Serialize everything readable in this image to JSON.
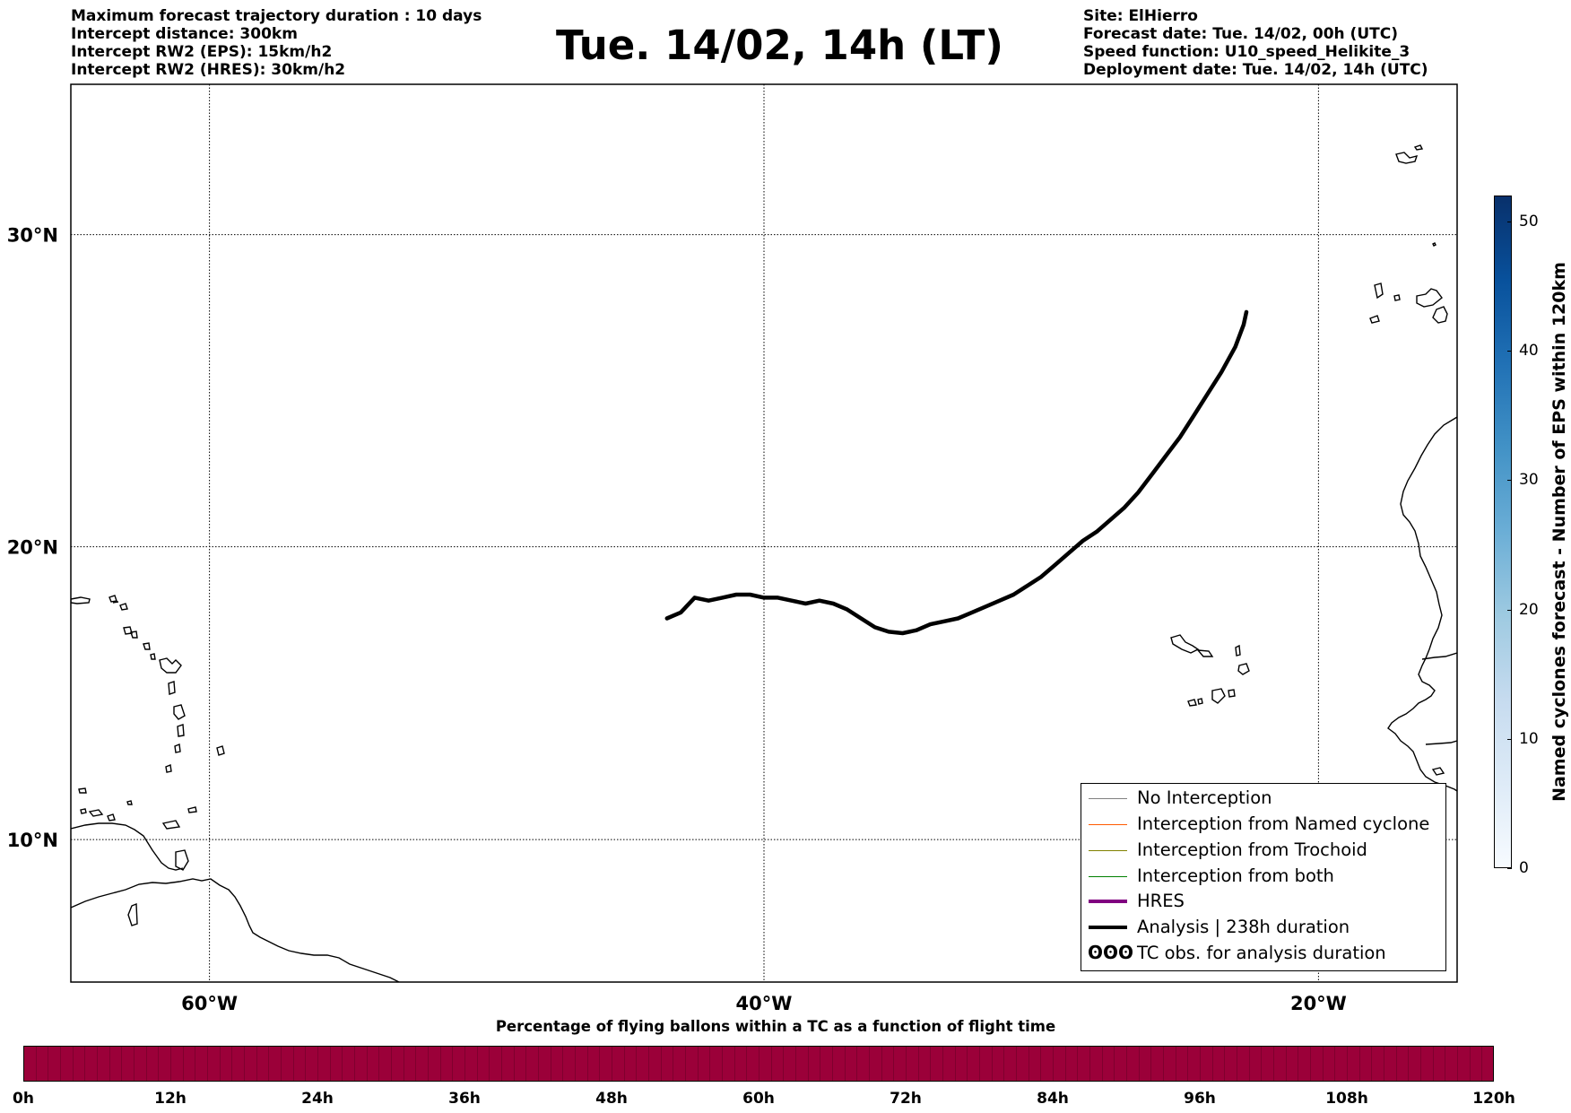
{
  "header": {
    "left_lines": [
      "Maximum forecast trajectory duration : 10 days",
      "Intercept distance: 300km",
      "Intercept RW2 (EPS):  15km/h2",
      "Intercept RW2 (HRES): 30km/h2"
    ],
    "title": "Tue. 14/02, 14h (LT)",
    "right_lines": [
      "Site: ElHierro",
      "Forecast date: Tue. 14/02, 00h (UTC)",
      "Speed function: U10_speed_Helikite_3",
      "Deployment date: Tue. 14/02, 14h (UTC)"
    ]
  },
  "map": {
    "lon_range": [
      -65,
      -15
    ],
    "lat_range": [
      5,
      34.5
    ],
    "lat_labels": [
      "30°N",
      "20°N",
      "10°N"
    ],
    "lon_labels": [
      "60°W",
      "40°W",
      "20°W"
    ],
    "gridlines": true,
    "analysis_track_color": "#000000",
    "analysis_track": [
      [
        -43.5,
        17.6
      ],
      [
        -43.0,
        17.8
      ],
      [
        -42.5,
        18.3
      ],
      [
        -42.0,
        18.2
      ],
      [
        -41.5,
        18.3
      ],
      [
        -41.0,
        18.4
      ],
      [
        -40.5,
        18.4
      ],
      [
        -40.0,
        18.3
      ],
      [
        -39.5,
        18.3
      ],
      [
        -39.0,
        18.2
      ],
      [
        -38.5,
        18.1
      ],
      [
        -38.0,
        18.2
      ],
      [
        -37.5,
        18.1
      ],
      [
        -37.0,
        17.9
      ],
      [
        -36.5,
        17.6
      ],
      [
        -36.0,
        17.3
      ],
      [
        -35.5,
        17.15
      ],
      [
        -35.0,
        17.1
      ],
      [
        -34.5,
        17.2
      ],
      [
        -34.0,
        17.4
      ],
      [
        -33.5,
        17.5
      ],
      [
        -33.0,
        17.6
      ],
      [
        -32.5,
        17.8
      ],
      [
        -32.0,
        18.0
      ],
      [
        -31.5,
        18.2
      ],
      [
        -31.0,
        18.4
      ],
      [
        -30.5,
        18.7
      ],
      [
        -30.0,
        19.0
      ],
      [
        -29.5,
        19.4
      ],
      [
        -29.0,
        19.8
      ],
      [
        -28.5,
        20.2
      ],
      [
        -28.0,
        20.5
      ],
      [
        -27.5,
        20.9
      ],
      [
        -27.0,
        21.3
      ],
      [
        -26.5,
        21.8
      ],
      [
        -26.0,
        22.4
      ],
      [
        -25.5,
        23.0
      ],
      [
        -25.0,
        23.6
      ],
      [
        -24.5,
        24.3
      ],
      [
        -24.0,
        25.0
      ],
      [
        -23.5,
        25.7
      ],
      [
        -23.0,
        26.5
      ],
      [
        -22.7,
        27.2
      ],
      [
        -22.6,
        27.6
      ]
    ]
  },
  "legend": {
    "placement": "lower-right",
    "items": [
      {
        "label": "No Interception",
        "color": "#808080"
      },
      {
        "label": "Interception from Named cyclone",
        "color": "#ff5a00"
      },
      {
        "label": "Interception from Trochoid",
        "color": "#808000"
      },
      {
        "label": "Interception from both",
        "color": "#008000"
      },
      {
        "label": "HRES",
        "color": "#800080"
      },
      {
        "label": "Analysis | 238h duration",
        "color": "#000000"
      },
      {
        "label": "TC obs. for analysis duration",
        "color": "#000000",
        "symbol": "ʘʘʘ"
      }
    ]
  },
  "time_colorbar": {
    "title": "Percentage of flying ballons within a TC as a function of flight time",
    "color": "#9b0039",
    "ticks": [
      "0h",
      "12h",
      "24h",
      "36h",
      "48h",
      "60h",
      "72h",
      "84h",
      "96h",
      "108h",
      "120h"
    ]
  },
  "eps_colorbar": {
    "label": "Named cyclones forecast - Number of EPS within 120km",
    "range": [
      0,
      52
    ],
    "ticks": [
      "0",
      "10",
      "20",
      "30",
      "40",
      "50"
    ],
    "colors": [
      "#f7fbff",
      "#deebf7",
      "#c6dbef",
      "#9ecae1",
      "#6baed6",
      "#4292c6",
      "#2171b5",
      "#08519c",
      "#08306b"
    ]
  }
}
